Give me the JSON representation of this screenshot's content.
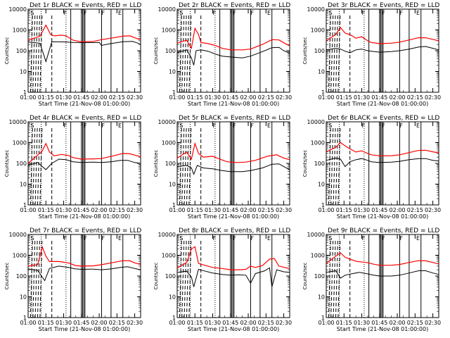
{
  "chart_data": {
    "type": "line",
    "panels": [
      {
        "title": "Det 1r BLACK = Events, RED = LLD",
        "events": [
          [
            0,
            260
          ],
          [
            10,
            230
          ],
          [
            15,
            30
          ],
          [
            20,
            270
          ],
          [
            30,
            265
          ],
          [
            38,
            250
          ],
          [
            45,
            245
          ],
          [
            55,
            245
          ],
          [
            60,
            250
          ],
          [
            62,
            180
          ],
          [
            70,
            220
          ],
          [
            80,
            270
          ],
          [
            88,
            280
          ],
          [
            92,
            240
          ],
          [
            95,
            200
          ]
        ],
        "lld": [
          [
            0,
            320
          ],
          [
            10,
            500
          ],
          [
            15,
            1700
          ],
          [
            19,
            600
          ],
          [
            22,
            520
          ],
          [
            28,
            560
          ],
          [
            32,
            520
          ],
          [
            38,
            320
          ],
          [
            45,
            270
          ],
          [
            55,
            280
          ],
          [
            62,
            340
          ],
          [
            70,
            400
          ],
          [
            80,
            500
          ],
          [
            86,
            520
          ],
          [
            90,
            420
          ],
          [
            95,
            330
          ]
        ]
      },
      {
        "title": "Det 2r BLACK = Events, RED = LLD",
        "events": [
          [
            0,
            80
          ],
          [
            8,
            110
          ],
          [
            12,
            45
          ],
          [
            14,
            20
          ],
          [
            16,
            100
          ],
          [
            20,
            110
          ],
          [
            26,
            95
          ],
          [
            32,
            70
          ],
          [
            38,
            55
          ],
          [
            45,
            50
          ],
          [
            55,
            45
          ],
          [
            62,
            55
          ],
          [
            72,
            90
          ],
          [
            80,
            140
          ],
          [
            86,
            145
          ],
          [
            90,
            100
          ],
          [
            95,
            75
          ]
        ],
        "lld": [
          [
            0,
            230
          ],
          [
            8,
            320
          ],
          [
            12,
            130
          ],
          [
            15,
            1200
          ],
          [
            18,
            600
          ],
          [
            20,
            250
          ],
          [
            26,
            220
          ],
          [
            32,
            180
          ],
          [
            38,
            130
          ],
          [
            45,
            110
          ],
          [
            55,
            110
          ],
          [
            62,
            120
          ],
          [
            72,
            200
          ],
          [
            80,
            340
          ],
          [
            86,
            330
          ],
          [
            90,
            240
          ],
          [
            95,
            170
          ]
        ]
      },
      {
        "title": "Det 3r BLACK = Events, RED = LLD",
        "events": [
          [
            0,
            110
          ],
          [
            8,
            130
          ],
          [
            12,
            120
          ],
          [
            16,
            95
          ],
          [
            20,
            80
          ],
          [
            25,
            110
          ],
          [
            30,
            120
          ],
          [
            35,
            100
          ],
          [
            38,
            95
          ],
          [
            45,
            85
          ],
          [
            55,
            90
          ],
          [
            62,
            100
          ],
          [
            70,
            120
          ],
          [
            78,
            150
          ],
          [
            84,
            160
          ],
          [
            90,
            130
          ],
          [
            95,
            110
          ]
        ],
        "lld": [
          [
            0,
            300
          ],
          [
            8,
            600
          ],
          [
            12,
            1300
          ],
          [
            16,
            700
          ],
          [
            20,
            600
          ],
          [
            25,
            400
          ],
          [
            30,
            470
          ],
          [
            35,
            300
          ],
          [
            38,
            250
          ],
          [
            45,
            220
          ],
          [
            55,
            230
          ],
          [
            62,
            260
          ],
          [
            70,
            330
          ],
          [
            78,
            420
          ],
          [
            84,
            420
          ],
          [
            90,
            350
          ],
          [
            95,
            300
          ]
        ]
      },
      {
        "title": "Det 4r BLACK = Events, RED = LLD",
        "events": [
          [
            0,
            80
          ],
          [
            8,
            110
          ],
          [
            15,
            50
          ],
          [
            20,
            100
          ],
          [
            26,
            160
          ],
          [
            32,
            150
          ],
          [
            38,
            120
          ],
          [
            45,
            110
          ],
          [
            55,
            115
          ],
          [
            62,
            110
          ],
          [
            70,
            120
          ],
          [
            78,
            140
          ],
          [
            84,
            140
          ],
          [
            90,
            110
          ],
          [
            95,
            100
          ]
        ],
        "lld": [
          [
            0,
            100
          ],
          [
            8,
            250
          ],
          [
            12,
            400
          ],
          [
            15,
            900
          ],
          [
            18,
            350
          ],
          [
            22,
            230
          ],
          [
            28,
            270
          ],
          [
            34,
            240
          ],
          [
            38,
            190
          ],
          [
            45,
            160
          ],
          [
            55,
            165
          ],
          [
            62,
            170
          ],
          [
            72,
            230
          ],
          [
            80,
            300
          ],
          [
            86,
            290
          ],
          [
            90,
            250
          ],
          [
            95,
            210
          ]
        ]
      },
      {
        "title": "Det 5r BLACK = Events, RED = LLD",
        "events": [
          [
            0,
            70
          ],
          [
            8,
            80
          ],
          [
            12,
            60
          ],
          [
            14,
            30
          ],
          [
            17,
            80
          ],
          [
            22,
            60
          ],
          [
            30,
            55
          ],
          [
            38,
            45
          ],
          [
            45,
            40
          ],
          [
            55,
            40
          ],
          [
            62,
            45
          ],
          [
            72,
            60
          ],
          [
            80,
            90
          ],
          [
            86,
            95
          ],
          [
            90,
            70
          ],
          [
            95,
            50
          ]
        ],
        "lld": [
          [
            0,
            180
          ],
          [
            8,
            350
          ],
          [
            12,
            160
          ],
          [
            15,
            900
          ],
          [
            18,
            300
          ],
          [
            22,
            200
          ],
          [
            30,
            220
          ],
          [
            36,
            160
          ],
          [
            42,
            120
          ],
          [
            50,
            110
          ],
          [
            58,
            115
          ],
          [
            66,
            140
          ],
          [
            76,
            220
          ],
          [
            84,
            260
          ],
          [
            90,
            180
          ],
          [
            95,
            150
          ]
        ]
      },
      {
        "title": "Det 6r BLACK = Events, RED = LLD",
        "events": [
          [
            0,
            140
          ],
          [
            8,
            180
          ],
          [
            12,
            160
          ],
          [
            16,
            70
          ],
          [
            20,
            120
          ],
          [
            25,
            150
          ],
          [
            30,
            170
          ],
          [
            35,
            140
          ],
          [
            38,
            120
          ],
          [
            45,
            110
          ],
          [
            55,
            115
          ],
          [
            62,
            125
          ],
          [
            70,
            150
          ],
          [
            78,
            170
          ],
          [
            84,
            170
          ],
          [
            90,
            140
          ],
          [
            95,
            130
          ]
        ],
        "lld": [
          [
            0,
            350
          ],
          [
            8,
            600
          ],
          [
            12,
            1000
          ],
          [
            16,
            700
          ],
          [
            20,
            500
          ],
          [
            25,
            350
          ],
          [
            30,
            400
          ],
          [
            35,
            300
          ],
          [
            38,
            260
          ],
          [
            45,
            230
          ],
          [
            55,
            235
          ],
          [
            62,
            260
          ],
          [
            70,
            330
          ],
          [
            78,
            420
          ],
          [
            84,
            430
          ],
          [
            90,
            360
          ],
          [
            95,
            320
          ]
        ]
      },
      {
        "title": "Det 7r BLACK = Events, RED = LLD",
        "events": [
          [
            0,
            220
          ],
          [
            8,
            190
          ],
          [
            14,
            60
          ],
          [
            18,
            230
          ],
          [
            26,
            300
          ],
          [
            34,
            260
          ],
          [
            40,
            220
          ],
          [
            45,
            210
          ],
          [
            55,
            215
          ],
          [
            62,
            200
          ],
          [
            70,
            220
          ],
          [
            78,
            260
          ],
          [
            84,
            280
          ],
          [
            90,
            230
          ],
          [
            95,
            200
          ]
        ],
        "lld": [
          [
            0,
            300
          ],
          [
            8,
            350
          ],
          [
            12,
            2500
          ],
          [
            15,
            900
          ],
          [
            18,
            500
          ],
          [
            26,
            500
          ],
          [
            34,
            430
          ],
          [
            40,
            320
          ],
          [
            45,
            300
          ],
          [
            55,
            310
          ],
          [
            62,
            350
          ],
          [
            72,
            450
          ],
          [
            80,
            550
          ],
          [
            86,
            540
          ],
          [
            90,
            430
          ],
          [
            95,
            360
          ]
        ]
      },
      {
        "title": "Det 8r BLACK = Events, RED = LLD",
        "events": [
          [
            0,
            150
          ],
          [
            8,
            170
          ],
          [
            12,
            90
          ],
          [
            14,
            30
          ],
          [
            18,
            210
          ],
          [
            24,
            170
          ],
          [
            30,
            140
          ],
          [
            38,
            120
          ],
          [
            45,
            110
          ],
          [
            52,
            115
          ],
          [
            58,
            110
          ],
          [
            62,
            45
          ],
          [
            66,
            130
          ],
          [
            74,
            180
          ],
          [
            78,
            250
          ],
          [
            80,
            30
          ],
          [
            84,
            200
          ],
          [
            90,
            160
          ],
          [
            95,
            150
          ]
        ],
        "lld": [
          [
            0,
            240
          ],
          [
            8,
            450
          ],
          [
            12,
            2000
          ],
          [
            15,
            2600
          ],
          [
            18,
            400
          ],
          [
            24,
            320
          ],
          [
            30,
            260
          ],
          [
            38,
            230
          ],
          [
            45,
            200
          ],
          [
            52,
            200
          ],
          [
            58,
            210
          ],
          [
            62,
            300
          ],
          [
            66,
            260
          ],
          [
            72,
            320
          ],
          [
            78,
            650
          ],
          [
            82,
            700
          ],
          [
            86,
            300
          ],
          [
            92,
            250
          ],
          [
            95,
            230
          ]
        ]
      },
      {
        "title": "Det 9r BLACK = Events, RED = LLD",
        "events": [
          [
            0,
            150
          ],
          [
            8,
            180
          ],
          [
            12,
            80
          ],
          [
            16,
            110
          ],
          [
            22,
            130
          ],
          [
            28,
            150
          ],
          [
            34,
            130
          ],
          [
            40,
            110
          ],
          [
            45,
            100
          ],
          [
            55,
            100
          ],
          [
            62,
            110
          ],
          [
            70,
            140
          ],
          [
            78,
            180
          ],
          [
            84,
            180
          ],
          [
            90,
            140
          ],
          [
            95,
            120
          ]
        ],
        "lld": [
          [
            0,
            400
          ],
          [
            8,
            900
          ],
          [
            12,
            1300
          ],
          [
            16,
            800
          ],
          [
            20,
            650
          ],
          [
            26,
            500
          ],
          [
            34,
            450
          ],
          [
            40,
            370
          ],
          [
            45,
            330
          ],
          [
            55,
            330
          ],
          [
            62,
            360
          ],
          [
            70,
            450
          ],
          [
            78,
            550
          ],
          [
            84,
            540
          ],
          [
            90,
            450
          ],
          [
            95,
            380
          ]
        ]
      }
    ],
    "x_unit": "minutes",
    "xlim": [
      0,
      95
    ],
    "x_tick_labels": [
      "01:00",
      "01:15",
      "01:30",
      "01:45",
      "02:00",
      "02:15",
      "02:30"
    ],
    "x_tick_values": [
      0,
      15,
      30,
      45,
      60,
      75,
      90
    ],
    "xlabel": "Start Time (21-Nov-08 01:00:00)",
    "ylabel": "Counts/sec",
    "y_scale": "log",
    "ylim": [
      1,
      10000
    ],
    "y_tick_labels": [
      "1",
      "10",
      "100",
      "1000",
      "10000"
    ],
    "series": [
      {
        "name": "Events",
        "color": "#000000"
      },
      {
        "name": "LLD",
        "color": "#ff0000"
      }
    ],
    "vertical_markers": {
      "dashed": [
        2,
        4,
        6,
        8,
        10,
        20
      ],
      "dotted": [
        3,
        11,
        32
      ],
      "solid": [
        36,
        45,
        46,
        47,
        48,
        62,
        70,
        80
      ]
    },
    "markers_labels": [
      "S",
      "F",
      "F",
      "F",
      "E"
    ],
    "grid": false,
    "legend": "in title"
  }
}
